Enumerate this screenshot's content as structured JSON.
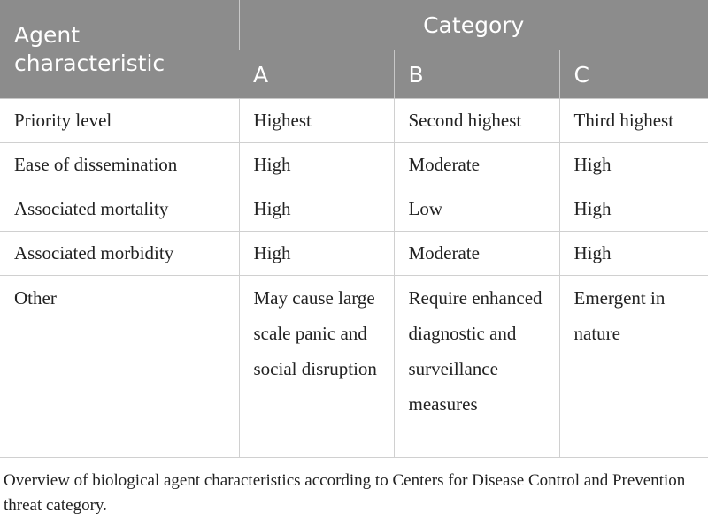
{
  "table": {
    "header": {
      "first": "Agent characteristic",
      "group": "Category",
      "columns": [
        "A",
        "B",
        "C"
      ]
    },
    "rows": [
      [
        "Priority level",
        "Highest",
        "Second highest",
        "Third highest"
      ],
      [
        "Ease of dissemination",
        "High",
        "Moderate",
        "High"
      ],
      [
        "Associated mortality",
        "High",
        "Low",
        "High"
      ],
      [
        "Associated morbidity",
        "High",
        "Moderate",
        "High"
      ],
      [
        "Other",
        "May cause large scale panic and social disruption",
        "Require enhanced diagnostic and surveillance measures",
        "Emergent in nature"
      ]
    ]
  },
  "caption": "Overview of biological agent characteristics according to Centers for Disease Control and Prevention threat category."
}
